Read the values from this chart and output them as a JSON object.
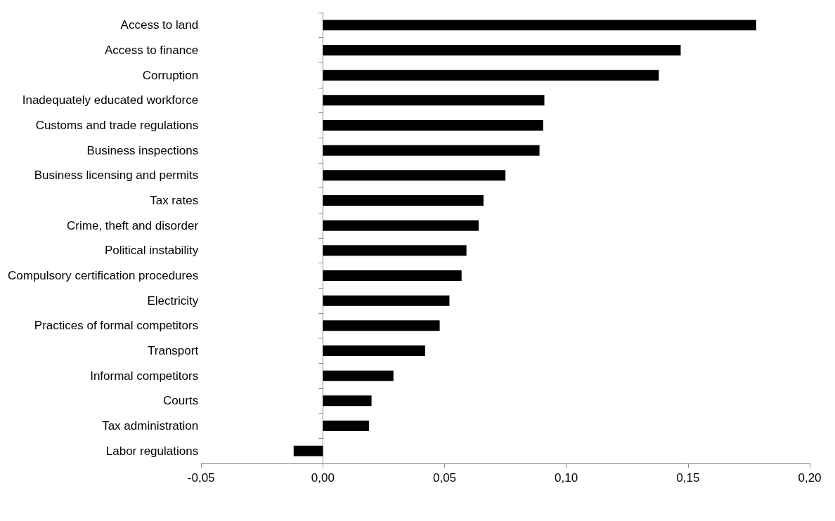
{
  "chart_data": {
    "type": "bar",
    "orientation": "horizontal",
    "categories": [
      "Access to land",
      "Access to finance",
      "Corruption",
      "Inadequately educated workforce",
      "Customs and trade regulations",
      "Business inspections",
      "Business licensing and permits",
      "Tax rates",
      "Crime, theft and disorder",
      "Political instability",
      "Compulsory certification procedures",
      "Electricity",
      "Practices of formal competitors",
      "Transport",
      "Informal competitors",
      "Courts",
      "Tax administration",
      "Labor regulations"
    ],
    "values": [
      0.178,
      0.147,
      0.138,
      0.091,
      0.0905,
      0.089,
      0.075,
      0.066,
      0.064,
      0.059,
      0.057,
      0.052,
      0.048,
      0.042,
      0.029,
      0.02,
      0.019,
      -0.012
    ],
    "color": "#000000",
    "xlim": [
      -0.05,
      0.2
    ],
    "xticks": [
      {
        "value": -0.05,
        "label": "-0,05"
      },
      {
        "value": 0,
        "label": "0,00"
      },
      {
        "value": 0.05,
        "label": "0,05"
      },
      {
        "value": 0.1,
        "label": "0,10"
      },
      {
        "value": 0.15,
        "label": "0,15"
      },
      {
        "value": 0.2,
        "label": "0,20"
      }
    ]
  }
}
